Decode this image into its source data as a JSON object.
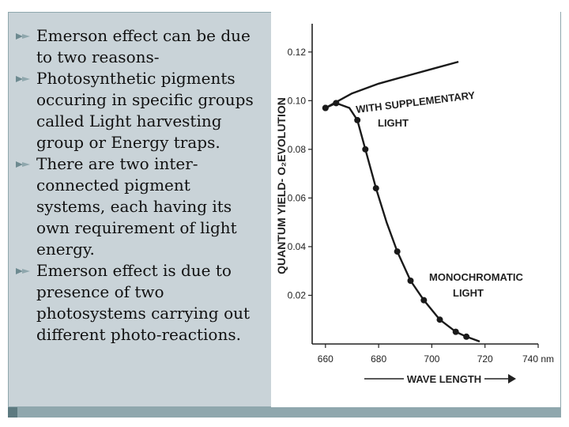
{
  "bullets": [
    {
      "icon": "bullet-icon",
      "lines": [
        "Emerson effect can be due",
        "to two reasons-"
      ]
    },
    {
      "icon": "bullet-icon",
      "lines": [
        "Photosynthetic pigments",
        "occuring in specific groups",
        "called Light harvesting",
        "group or Energy traps."
      ]
    },
    {
      "icon": "bullet-icon",
      "lines": [
        " There are two inter-",
        "connected pigment",
        "systems, each having its",
        "own requirement of light",
        "energy."
      ]
    },
    {
      "icon": "bullet-icon",
      "lines": [
        "Emerson effect is due to",
        "presence of two",
        "photosystems carrying out",
        "different photo-reactions."
      ]
    }
  ],
  "colors": {
    "slide_bg": "#c9d3d8",
    "accent": "#8fa7ad",
    "bullet": "#6d8a90"
  },
  "chart_data": {
    "type": "line",
    "ylabel": "QUANTUM YIELD- O₂EVOLUTION",
    "xlabel": "WAVE LENGTH",
    "xlim": [
      655,
      740
    ],
    "ylim": [
      0,
      0.13
    ],
    "x_ticks": [
      "660",
      "680",
      "700",
      "720",
      "740 nm"
    ],
    "x_tick_values": [
      660,
      680,
      700,
      720,
      740
    ],
    "y_ticks": [
      "0.02",
      "0.04",
      "0.06",
      "0.08",
      "0.10",
      "0.12"
    ],
    "y_tick_values": [
      0.02,
      0.04,
      0.06,
      0.08,
      0.1,
      0.12
    ],
    "series": [
      {
        "name": "WITH SUPPLEMENTARY LIGHT",
        "label_lines": [
          "WITH SUPPLEMENTARY",
          "LIGHT"
        ],
        "x": [
          660,
          665,
          670,
          680,
          690,
          700,
          710
        ],
        "y": [
          0.097,
          0.1,
          0.103,
          0.107,
          0.11,
          0.113,
          0.116
        ],
        "markers": [
          true,
          false,
          false,
          false,
          false,
          false,
          false
        ]
      },
      {
        "name": "MONOCHROMATIC LIGHT",
        "label_lines": [
          "MONOCHROMATIC",
          "LIGHT"
        ],
        "x": [
          660,
          664,
          669,
          672,
          675,
          679,
          683,
          687,
          692,
          697,
          703,
          709,
          713,
          718
        ],
        "y": [
          0.097,
          0.099,
          0.097,
          0.092,
          0.08,
          0.064,
          0.05,
          0.038,
          0.026,
          0.018,
          0.01,
          0.005,
          0.003,
          0.001
        ],
        "markers": [
          true,
          true,
          false,
          true,
          true,
          true,
          false,
          true,
          true,
          true,
          true,
          true,
          true,
          false
        ]
      }
    ]
  }
}
